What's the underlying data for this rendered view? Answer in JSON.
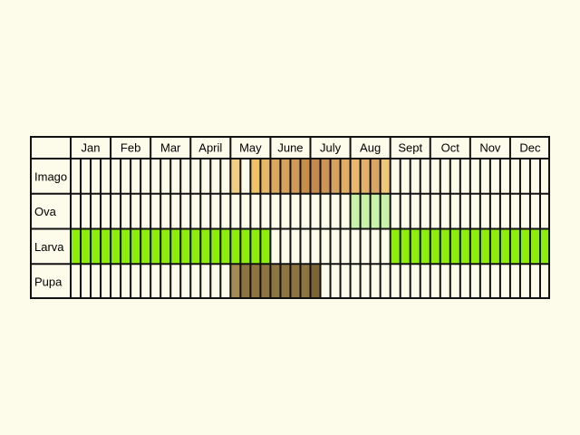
{
  "chart_data": {
    "type": "table",
    "months": [
      "Jan",
      "Feb",
      "Mar",
      "April",
      "May",
      "June",
      "July",
      "Aug",
      "Sept",
      "Oct",
      "Nov",
      "Dec"
    ],
    "subdivisions_per_month": 4,
    "rows": [
      {
        "label": "Imago",
        "spans": [
          {
            "from": 16,
            "to": 17,
            "color": "#f2cd84"
          },
          {
            "from": 18,
            "to": 19,
            "color": "#f0c266"
          },
          {
            "from": 19,
            "to": 20,
            "color": "#e6b766"
          },
          {
            "from": 20,
            "to": 21,
            "color": "#dca85e"
          },
          {
            "from": 21,
            "to": 22,
            "color": "#d6a25c"
          },
          {
            "from": 22,
            "to": 23,
            "color": "#cf9a56"
          },
          {
            "from": 23,
            "to": 24,
            "color": "#c98d4a"
          },
          {
            "from": 24,
            "to": 25,
            "color": "#c48a4c"
          },
          {
            "from": 25,
            "to": 26,
            "color": "#cd9455"
          },
          {
            "from": 26,
            "to": 27,
            "color": "#d6a25e"
          },
          {
            "from": 27,
            "to": 28,
            "color": "#e0ad64"
          },
          {
            "from": 28,
            "to": 29,
            "color": "#e8b96c"
          },
          {
            "from": 29,
            "to": 30,
            "color": "#e2b06a"
          },
          {
            "from": 30,
            "to": 31,
            "color": "#d9a464"
          },
          {
            "from": 31,
            "to": 32,
            "color": "#efc779"
          }
        ]
      },
      {
        "label": "Ova",
        "spans": [
          {
            "from": 28,
            "to": 32,
            "color": "#c8f2a8"
          }
        ]
      },
      {
        "label": "Larva",
        "spans": [
          {
            "from": 0,
            "to": 20,
            "color": "#8cee0a"
          },
          {
            "from": 32,
            "to": 48,
            "color": "#8cee0a"
          }
        ]
      },
      {
        "label": "Pupa",
        "spans": [
          {
            "from": 16,
            "to": 17,
            "color": "#a58a55"
          },
          {
            "from": 17,
            "to": 24,
            "color": "#8e7440"
          },
          {
            "from": 24,
            "to": 25,
            "color": "#7d6434"
          }
        ]
      }
    ]
  }
}
